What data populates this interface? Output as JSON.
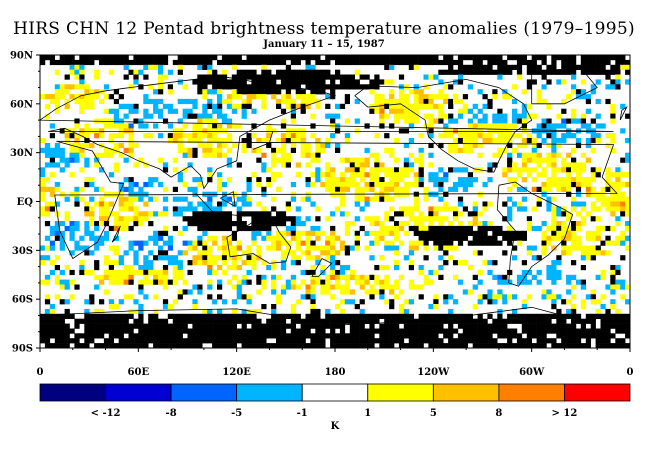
{
  "title": "HIRS CHN 12 Pentad brightness temperature anomalies (1979–1995)",
  "subtitle": "January 11 – 15, 1987",
  "lat_axis": [
    "90N",
    "60N",
    "30N",
    "EQ",
    "30S",
    "60S",
    "90S"
  ],
  "lon_axis": [
    "0",
    "60E",
    "120E",
    "180",
    "120W",
    "60W",
    "0"
  ],
  "colorbar": {
    "unit": "K",
    "colors": [
      "#000080",
      "#0000d0",
      "#0064ff",
      "#00b4ff",
      "#ffffff",
      "#ffff00",
      "#ffc000",
      "#ff8000",
      "#ff0000"
    ],
    "tick_labels": [
      "< -12",
      "-8",
      "-5",
      "-1",
      "1",
      "5",
      "8",
      "> 12"
    ]
  },
  "map_colors": {
    "missing": "#000000",
    "blue": "#00b4ff",
    "yellow": "#ffff00",
    "orange": "#ffc000",
    "dark_orange": "#ff8000",
    "red": "#ff0000",
    "blue2": "#0064ff",
    "coast": "#000000"
  }
}
